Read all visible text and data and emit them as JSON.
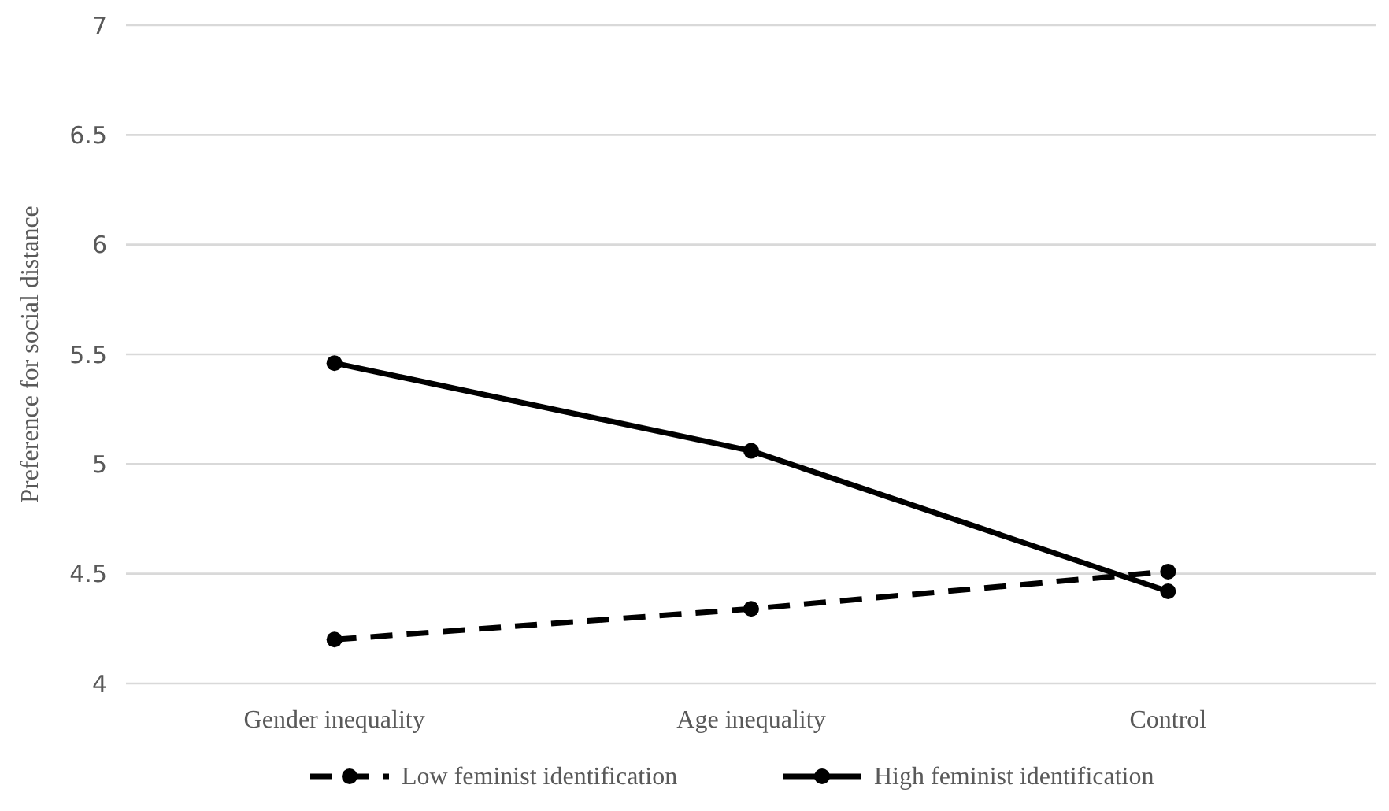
{
  "chart_data": {
    "type": "line",
    "ylabel": "Preference for social distance",
    "categories": [
      "Gender inequality",
      "Age inequality",
      "Control"
    ],
    "ylim": [
      4,
      7
    ],
    "yticks": [
      4,
      4.5,
      5,
      5.5,
      6,
      6.5,
      7
    ],
    "grid": "y",
    "legend": "bottom",
    "marker": "circle",
    "series": [
      {
        "name": "Low feminist identification",
        "color": "#000000",
        "line_style": "dashed",
        "values": [
          4.2,
          4.34,
          4.51
        ]
      },
      {
        "name": "High feminist identification",
        "color": "#000000",
        "line_style": "solid",
        "values": [
          5.46,
          5.06,
          4.42
        ]
      }
    ]
  }
}
